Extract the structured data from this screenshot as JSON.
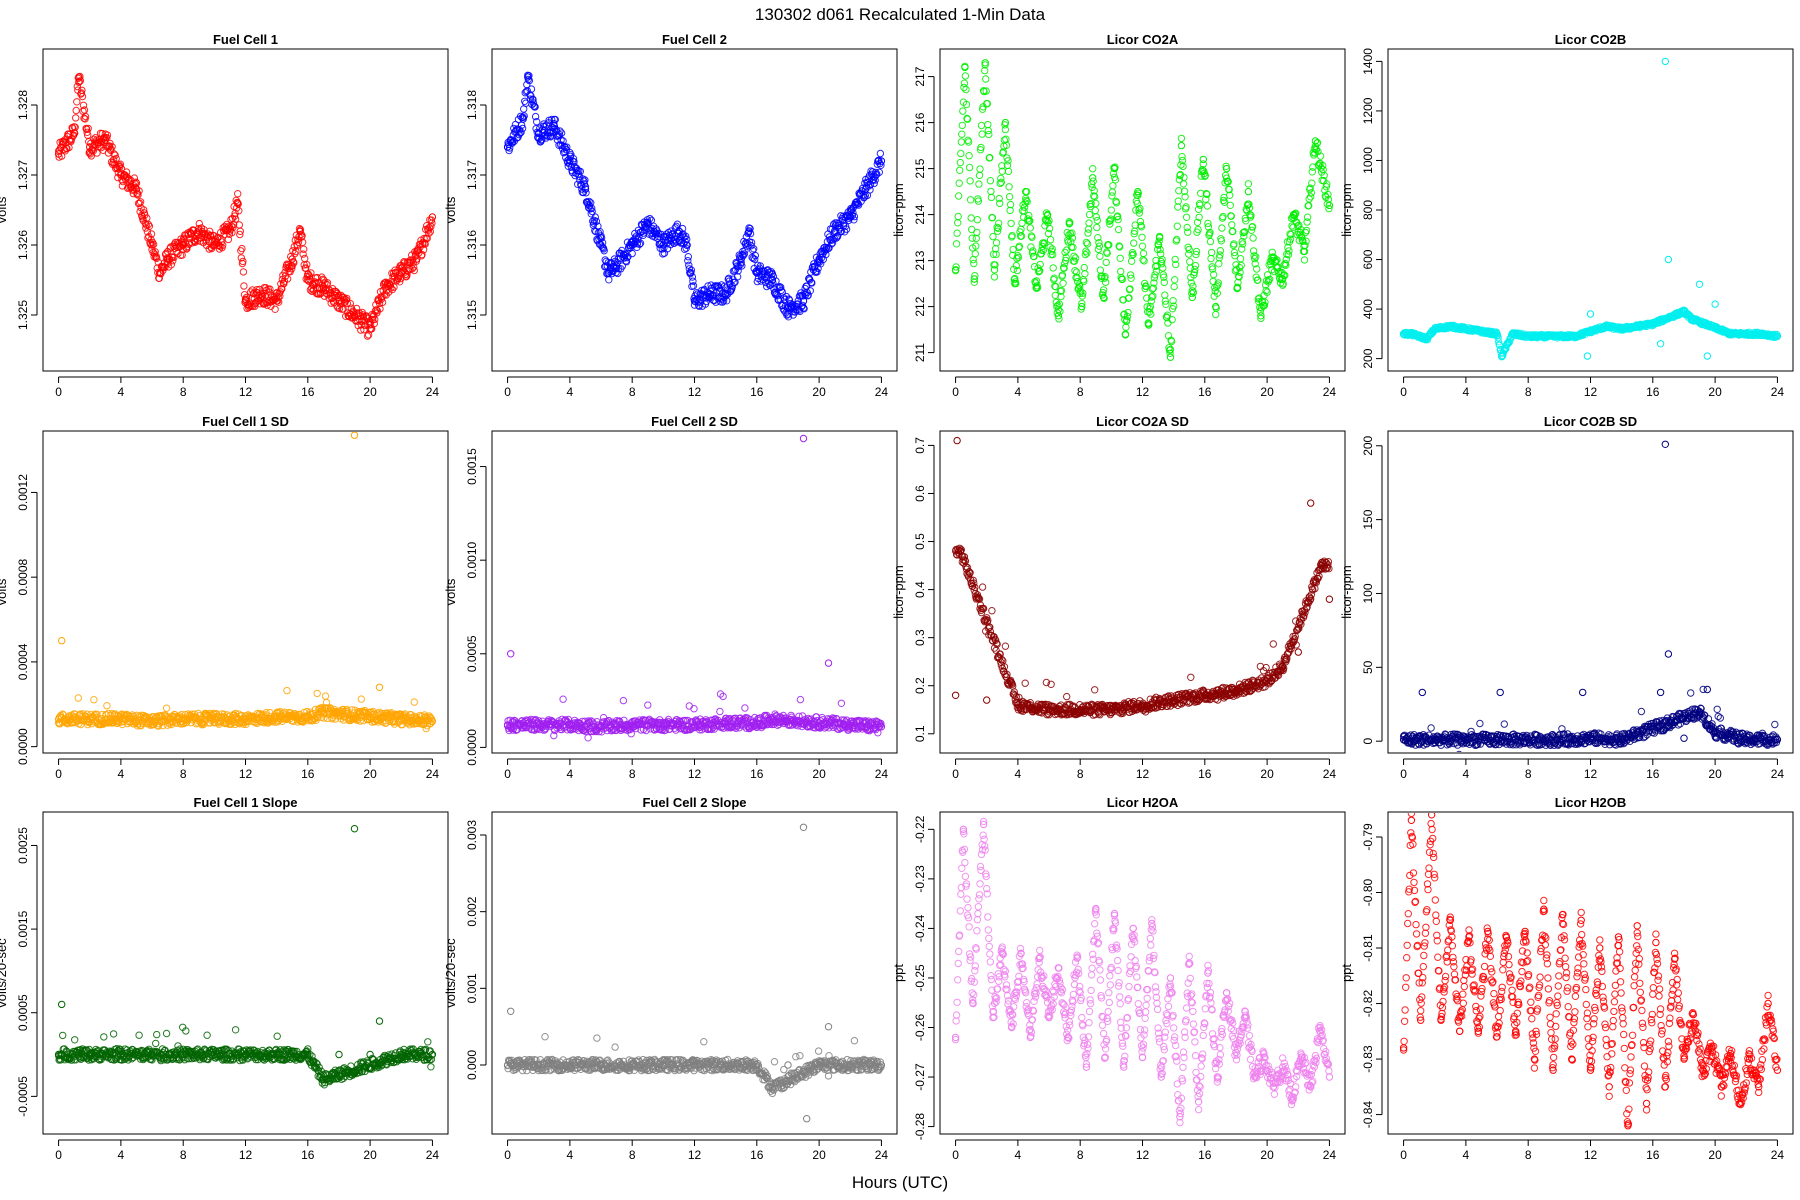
{
  "figure": {
    "title": "130302    d061    Recalculated 1-Min Data",
    "xlabel": "Hours (UTC)"
  },
  "chart_data": [
    {
      "type": "scatter",
      "title": "Fuel Cell 1",
      "ylabel": "volts",
      "color": "#ff0000",
      "xlim": [
        -1,
        25
      ],
      "xticks": [
        0,
        4,
        8,
        12,
        16,
        20,
        24
      ],
      "xtick_labels": [
        "0",
        "4",
        "8",
        "12",
        "16",
        "20",
        "24"
      ],
      "ylim": [
        1.3242,
        1.3288
      ],
      "yticks": [
        1.325,
        1.326,
        1.327,
        1.328
      ],
      "ytick_labels": [
        "1.325",
        "1.326",
        "1.327",
        "1.328"
      ],
      "x": [
        0,
        1,
        1.3,
        2,
        3,
        4,
        5,
        6,
        6.5,
        7,
        8,
        9,
        10,
        11,
        11.5,
        12,
        13,
        14,
        15,
        15.5,
        16,
        17,
        18,
        19,
        20,
        21,
        22,
        23,
        24
      ],
      "y": [
        1.3273,
        1.3276,
        1.3284,
        1.3274,
        1.3275,
        1.327,
        1.3268,
        1.326,
        1.3256,
        1.3258,
        1.326,
        1.3262,
        1.326,
        1.3262,
        1.3266,
        1.3252,
        1.3253,
        1.3252,
        1.3258,
        1.3262,
        1.3255,
        1.3254,
        1.3252,
        1.325,
        1.3248,
        1.3254,
        1.3256,
        1.3258,
        1.3264
      ]
    },
    {
      "type": "scatter",
      "title": "Fuel Cell 2",
      "ylabel": "volts",
      "color": "#0000ff",
      "xlim": [
        -1,
        25
      ],
      "xticks": [
        0,
        4,
        8,
        12,
        16,
        20,
        24
      ],
      "xtick_labels": [
        "0",
        "4",
        "8",
        "12",
        "16",
        "20",
        "24"
      ],
      "ylim": [
        1.3142,
        1.3188
      ],
      "yticks": [
        1.315,
        1.316,
        1.317,
        1.318
      ],
      "ytick_labels": [
        "1.315",
        "1.316",
        "1.317",
        "1.318"
      ],
      "x": [
        0,
        1,
        1.3,
        2,
        3,
        4,
        5,
        6,
        6.5,
        7,
        8,
        9,
        10,
        11,
        11.5,
        12,
        13,
        14,
        15,
        15.5,
        16,
        17,
        18,
        19,
        20,
        21,
        22,
        23,
        24
      ],
      "y": [
        1.3174,
        1.3178,
        1.3184,
        1.3176,
        1.3177,
        1.3172,
        1.3168,
        1.316,
        1.3156,
        1.3157,
        1.316,
        1.3163,
        1.316,
        1.3162,
        1.316,
        1.3152,
        1.3153,
        1.3153,
        1.3158,
        1.3162,
        1.3156,
        1.3155,
        1.3151,
        1.3152,
        1.3158,
        1.3162,
        1.3164,
        1.3168,
        1.3172
      ]
    },
    {
      "type": "scatter",
      "title": "Licor CO2A",
      "ylabel": "licor-ppm",
      "color": "#00ee00",
      "xlim": [
        -1,
        25
      ],
      "xticks": [
        0,
        4,
        8,
        12,
        16,
        20,
        24
      ],
      "xtick_labels": [
        "0",
        "4",
        "8",
        "12",
        "16",
        "20",
        "24"
      ],
      "ylim": [
        210.6,
        217.6
      ],
      "yticks": [
        211,
        212,
        213,
        214,
        215,
        216,
        217
      ],
      "ytick_labels": [
        "211",
        "212",
        "213",
        "214",
        "215",
        "216",
        "217"
      ],
      "x": [
        0,
        0.6,
        1.2,
        1.9,
        2.5,
        3.2,
        3.8,
        4.5,
        5.2,
        5.9,
        6.6,
        7.3,
        8.1,
        8.8,
        9.5,
        10.2,
        10.9,
        11.7,
        12.4,
        13.1,
        13.8,
        14.5,
        15.2,
        15.9,
        16.7,
        17.4,
        18.1,
        18.8,
        19.6,
        20.3,
        21.0,
        21.7,
        22.4,
        23.1,
        24
      ],
      "y": [
        212.8,
        217.2,
        212.6,
        217.3,
        212.8,
        216.0,
        212.5,
        214.5,
        212.4,
        214.0,
        211.8,
        213.8,
        212.0,
        214.8,
        212.2,
        215.0,
        211.4,
        214.5,
        211.6,
        213.5,
        210.9,
        215.5,
        212.2,
        215.2,
        212.0,
        215.0,
        212.4,
        214.5,
        211.8,
        213.0,
        212.6,
        214.0,
        213.2,
        215.6,
        214.2
      ]
    },
    {
      "type": "scatter",
      "title": "Licor CO2B",
      "ylabel": "licor-ppm",
      "color": "#00eeee",
      "xlim": [
        -1,
        25
      ],
      "xticks": [
        0,
        4,
        8,
        12,
        16,
        20,
        24
      ],
      "xtick_labels": [
        "0",
        "4",
        "8",
        "12",
        "16",
        "20",
        "24"
      ],
      "ylim": [
        150,
        1450
      ],
      "yticks": [
        200,
        400,
        600,
        800,
        1000,
        1200,
        1400
      ],
      "ytick_labels": [
        "200",
        "400",
        "600",
        "800",
        "1000",
        "1200",
        "1400"
      ],
      "x": [
        0,
        0.5,
        1.5,
        2,
        3,
        4,
        5,
        6,
        6.3,
        7,
        8,
        9,
        10,
        11,
        11.8,
        12,
        13,
        14,
        15,
        16,
        16.5,
        16.8,
        17,
        17.5,
        18,
        18.5,
        19,
        19.5,
        20,
        21,
        22,
        23,
        24
      ],
      "y": [
        300,
        300,
        280,
        320,
        330,
        320,
        310,
        300,
        210,
        300,
        290,
        290,
        290,
        290,
        210,
        380,
        330,
        320,
        330,
        340,
        260,
        1400,
        600,
        380,
        390,
        360,
        500,
        210,
        420,
        300,
        300,
        300,
        290
      ]
    },
    {
      "type": "scatter",
      "title": "Fuel Cell 1 SD",
      "ylabel": "volts",
      "color": "#ffa500",
      "xlim": [
        -1,
        25
      ],
      "xticks": [
        0,
        4,
        8,
        12,
        16,
        20,
        24
      ],
      "xtick_labels": [
        "0",
        "4",
        "8",
        "12",
        "16",
        "20",
        "24"
      ],
      "ylim": [
        -3e-05,
        0.00149
      ],
      "yticks": [
        0,
        0.0004,
        0.0008,
        0.0012
      ],
      "ytick_labels": [
        "0.0000",
        "0.0004",
        "0.0008",
        "0.0012"
      ],
      "x": [
        0,
        0.2,
        1,
        2,
        4,
        6,
        8,
        10,
        12,
        14,
        16,
        17,
        18,
        19,
        20,
        20.6,
        22,
        24
      ],
      "y": [
        0.00013,
        0.0005,
        0.00014,
        0.00013,
        0.00013,
        0.00012,
        0.00013,
        0.00013,
        0.00013,
        0.00014,
        0.00014,
        0.00016,
        0.00015,
        0.00147,
        0.00014,
        0.00028,
        0.00013,
        0.00012
      ]
    },
    {
      "type": "scatter",
      "title": "Fuel Cell 2 SD",
      "ylabel": "volts",
      "color": "#a020f0",
      "xlim": [
        -1,
        25
      ],
      "xticks": [
        0,
        4,
        8,
        12,
        16,
        20,
        24
      ],
      "xtick_labels": [
        "0",
        "4",
        "8",
        "12",
        "16",
        "20",
        "24"
      ],
      "ylim": [
        -3e-05,
        0.00169
      ],
      "yticks": [
        0,
        0.0005,
        0.001,
        0.0015
      ],
      "ytick_labels": [
        "0.0000",
        "0.0005",
        "0.0010",
        "0.0015"
      ],
      "x": [
        0,
        0.2,
        1,
        2,
        4,
        6,
        8,
        10,
        12,
        14,
        16,
        17,
        18,
        19,
        20,
        20.6,
        22,
        24
      ],
      "y": [
        0.00012,
        0.0005,
        0.00013,
        0.00012,
        0.00012,
        0.00011,
        0.00012,
        0.00012,
        0.00012,
        0.00013,
        0.00013,
        0.00015,
        0.00014,
        0.00165,
        0.00013,
        0.00045,
        0.00012,
        0.00011
      ]
    },
    {
      "type": "scatter",
      "title": "Licor CO2A SD",
      "ylabel": "licor-ppm",
      "color": "#8b0000",
      "xlim": [
        -1,
        25
      ],
      "xticks": [
        0,
        4,
        8,
        12,
        16,
        20,
        24
      ],
      "xtick_labels": [
        "0",
        "4",
        "8",
        "12",
        "16",
        "20",
        "24"
      ],
      "ylim": [
        0.06,
        0.73
      ],
      "yticks": [
        0.1,
        0.2,
        0.3,
        0.4,
        0.5,
        0.6,
        0.7
      ],
      "ytick_labels": [
        "0.1",
        "0.2",
        "0.3",
        "0.4",
        "0.5",
        "0.6",
        "0.7"
      ],
      "x": [
        0,
        0.1,
        0.3,
        2,
        4,
        6,
        8,
        10,
        12,
        14,
        16,
        18,
        20,
        21,
        22,
        22.8,
        23.5,
        24
      ],
      "y": [
        0.18,
        0.71,
        0.48,
        0.17,
        0.16,
        0.15,
        0.15,
        0.15,
        0.16,
        0.17,
        0.18,
        0.19,
        0.21,
        0.24,
        0.27,
        0.58,
        0.45,
        0.38
      ]
    },
    {
      "type": "scatter",
      "title": "Licor CO2B SD",
      "ylabel": "licor-ppm",
      "color": "#000080",
      "xlim": [
        -1,
        25
      ],
      "xticks": [
        0,
        4,
        8,
        12,
        16,
        20,
        24
      ],
      "xtick_labels": [
        "0",
        "4",
        "8",
        "12",
        "16",
        "20",
        "24"
      ],
      "ylim": [
        -8,
        210
      ],
      "yticks": [
        0,
        50,
        100,
        150,
        200
      ],
      "ytick_labels": [
        "0",
        "50",
        "100",
        "150",
        "200"
      ],
      "x": [
        0,
        1.2,
        2,
        4,
        6.2,
        8,
        10,
        11.5,
        12,
        14,
        16.5,
        16.8,
        17,
        18,
        19,
        19.5,
        20,
        22,
        24
      ],
      "y": [
        1,
        33,
        1,
        1,
        33,
        1,
        1,
        33,
        2,
        1,
        33,
        201,
        59,
        2,
        20,
        35,
        6,
        1,
        1
      ]
    },
    {
      "type": "scatter",
      "title": "Fuel Cell 1 Slope",
      "ylabel": "volts/20-sec",
      "color": "#006400",
      "xlim": [
        -1,
        25
      ],
      "xticks": [
        0,
        4,
        8,
        12,
        16,
        20,
        24
      ],
      "xtick_labels": [
        "0",
        "4",
        "8",
        "12",
        "16",
        "20",
        "24"
      ],
      "ylim": [
        -0.00095,
        0.0029
      ],
      "yticks": [
        -0.0005,
        0.0005,
        0.0015,
        0.0025
      ],
      "ytick_labels": [
        "-0.0005",
        "0.0005",
        "0.0015",
        "0.0025"
      ],
      "x": [
        0,
        0.2,
        2,
        4,
        6,
        8,
        10,
        12,
        14,
        16,
        17,
        18,
        19,
        20,
        20.6,
        22,
        24
      ],
      "y": [
        0,
        0.0006,
        0,
        0,
        0,
        0,
        0,
        0,
        0,
        0,
        -0.0003,
        0,
        0.0027,
        0,
        0.0004,
        0,
        0
      ]
    },
    {
      "type": "scatter",
      "title": "Fuel Cell 2 Slope",
      "ylabel": "volts/20-sec",
      "color": "#808080",
      "xlim": [
        -1,
        25
      ],
      "xticks": [
        0,
        4,
        8,
        12,
        16,
        20,
        24
      ],
      "xtick_labels": [
        "0",
        "4",
        "8",
        "12",
        "16",
        "20",
        "24"
      ],
      "ylim": [
        -0.0009,
        0.0033
      ],
      "yticks": [
        0,
        0.001,
        0.002,
        0.003
      ],
      "ytick_labels": [
        "0.000",
        "0.001",
        "0.002",
        "0.003"
      ],
      "x": [
        0,
        0.2,
        2,
        4,
        6,
        8,
        10,
        12,
        14,
        16,
        17,
        18,
        19,
        19.2,
        20,
        20.6,
        22,
        24
      ],
      "y": [
        0,
        0.0007,
        0,
        0,
        0,
        0,
        0,
        0,
        0,
        0,
        -0.0003,
        0,
        0.0031,
        -0.0007,
        0,
        0.0005,
        0,
        0
      ]
    },
    {
      "type": "scatter",
      "title": "Licor H2OA",
      "ylabel": "ppt",
      "color": "#ee82ee",
      "xlim": [
        -1,
        25
      ],
      "xticks": [
        0,
        4,
        8,
        12,
        16,
        20,
        24
      ],
      "xtick_labels": [
        "0",
        "4",
        "8",
        "12",
        "16",
        "20",
        "24"
      ],
      "ylim": [
        -0.2815,
        -0.2165
      ],
      "yticks": [
        -0.28,
        -0.27,
        -0.26,
        -0.25,
        -0.24,
        -0.23,
        -0.22
      ],
      "ytick_labels": [
        "-0.28",
        "-0.27",
        "-0.26",
        "-0.25",
        "-0.24",
        "-0.23",
        "-0.22"
      ],
      "x": [
        0,
        0.5,
        1.1,
        1.8,
        2.4,
        3.0,
        3.6,
        4.2,
        4.8,
        5.4,
        6.0,
        6.6,
        7.2,
        7.8,
        8.4,
        9.0,
        9.6,
        10.2,
        10.8,
        11.4,
        12.0,
        12.6,
        13.2,
        13.8,
        14.4,
        15.0,
        15.6,
        16.2,
        16.8,
        17.4,
        18.0,
        18.6,
        19.2,
        19.8,
        20.4,
        21.0,
        21.6,
        22.2,
        22.8,
        23.4,
        24
      ],
      "y": [
        -0.262,
        -0.22,
        -0.255,
        -0.219,
        -0.258,
        -0.245,
        -0.26,
        -0.245,
        -0.262,
        -0.246,
        -0.258,
        -0.248,
        -0.262,
        -0.246,
        -0.268,
        -0.236,
        -0.266,
        -0.237,
        -0.268,
        -0.24,
        -0.266,
        -0.239,
        -0.27,
        -0.25,
        -0.278,
        -0.247,
        -0.275,
        -0.249,
        -0.27,
        -0.253,
        -0.265,
        -0.258,
        -0.27,
        -0.266,
        -0.272,
        -0.268,
        -0.274,
        -0.266,
        -0.272,
        -0.26,
        -0.27
      ]
    },
    {
      "type": "scatter",
      "title": "Licor H2OB",
      "ylabel": "ppt",
      "color": "#ff0000",
      "xlim": [
        -1,
        25
      ],
      "xticks": [
        0,
        4,
        8,
        12,
        16,
        20,
        24
      ],
      "xtick_labels": [
        "0",
        "4",
        "8",
        "12",
        "16",
        "20",
        "24"
      ],
      "ylim": [
        -0.8435,
        -0.7855
      ],
      "yticks": [
        -0.84,
        -0.83,
        -0.82,
        -0.81,
        -0.8,
        -0.79
      ],
      "ytick_labels": [
        "-0.84",
        "-0.83",
        "-0.82",
        "-0.81",
        "-0.80",
        "-0.79"
      ],
      "x": [
        0,
        0.5,
        1.1,
        1.8,
        2.4,
        3.0,
        3.6,
        4.2,
        4.8,
        5.4,
        6.0,
        6.6,
        7.2,
        7.8,
        8.4,
        9.0,
        9.6,
        10.2,
        10.8,
        11.4,
        12.0,
        12.6,
        13.2,
        13.8,
        14.4,
        15.0,
        15.6,
        16.2,
        16.8,
        17.4,
        18.0,
        18.6,
        19.2,
        19.8,
        20.4,
        21.0,
        21.6,
        22.2,
        22.8,
        23.4,
        24
      ],
      "y": [
        -0.828,
        -0.787,
        -0.823,
        -0.786,
        -0.823,
        -0.805,
        -0.825,
        -0.808,
        -0.825,
        -0.807,
        -0.826,
        -0.808,
        -0.825,
        -0.807,
        -0.83,
        -0.803,
        -0.832,
        -0.804,
        -0.83,
        -0.805,
        -0.832,
        -0.81,
        -0.835,
        -0.808,
        -0.842,
        -0.806,
        -0.838,
        -0.809,
        -0.835,
        -0.812,
        -0.83,
        -0.822,
        -0.832,
        -0.828,
        -0.835,
        -0.829,
        -0.838,
        -0.83,
        -0.835,
        -0.82,
        -0.832
      ]
    }
  ]
}
